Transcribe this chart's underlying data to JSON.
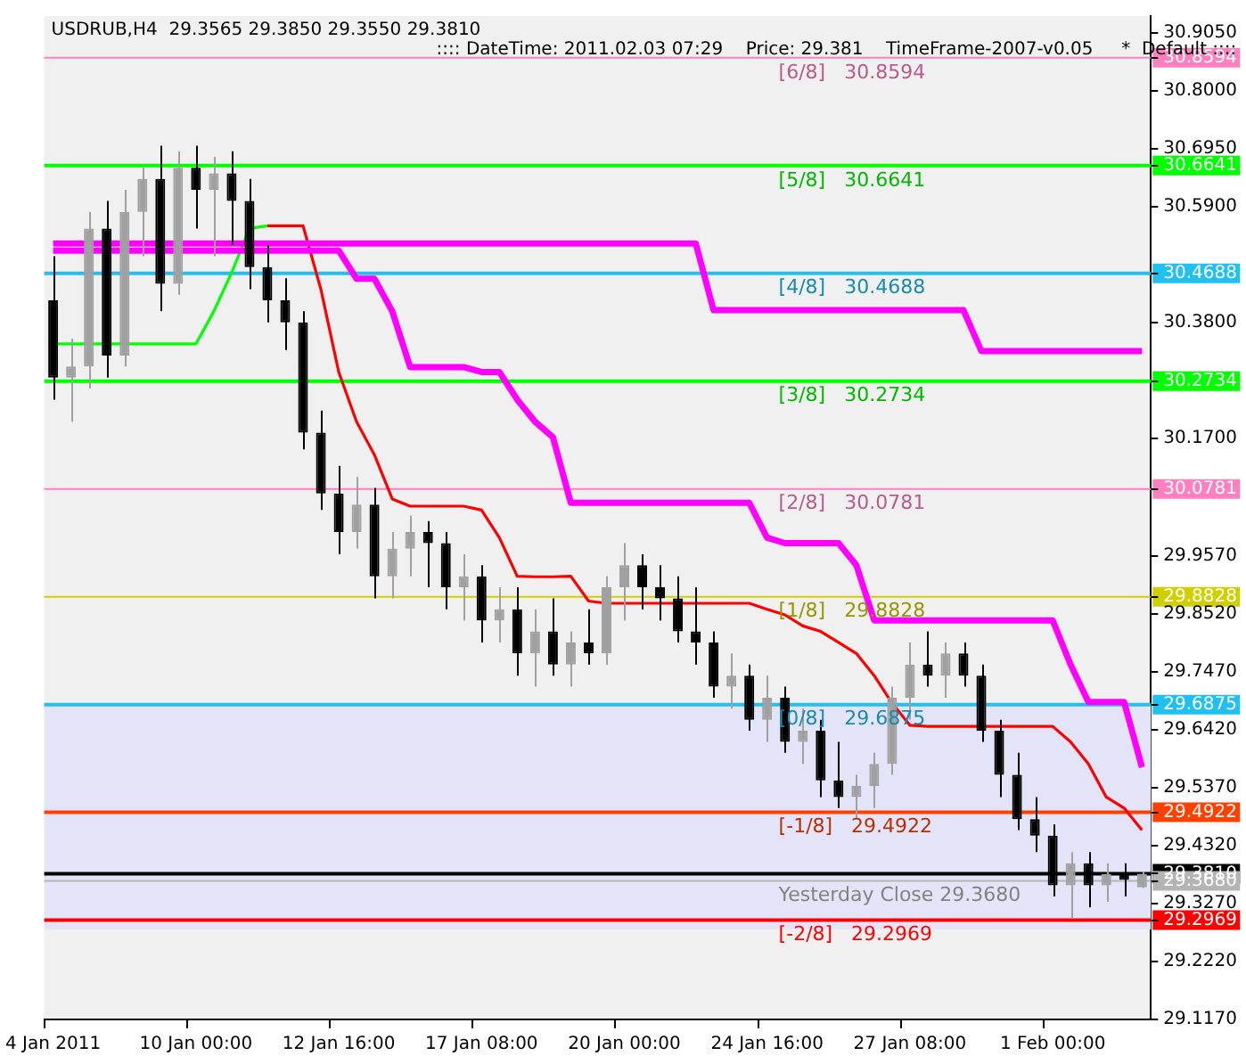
{
  "chart_data": {
    "type": "candlestick",
    "title": "USDRUB,H4  29.3565 29.3850 29.3550 29.3810",
    "subtitle": ":::: DateTime: 2011.02.03 07:29    Price: 29.381    TimeFrame-2007-v0.05     *  Default ::::",
    "categories": [
      "4 Jan 2011",
      null,
      null,
      null,
      null,
      null,
      null,
      null,
      "10 Jan 00:00",
      null,
      null,
      null,
      null,
      null,
      null,
      null,
      "12 Jan 16:00",
      null,
      null,
      null,
      null,
      null,
      null,
      null,
      "17 Jan 08:00",
      null,
      null,
      null,
      null,
      null,
      null,
      null,
      "20 Jan 00:00",
      null,
      null,
      null,
      null,
      null,
      null,
      null,
      "24 Jan 16:00",
      null,
      null,
      null,
      null,
      null,
      null,
      null,
      "27 Jan 08:00",
      null,
      null,
      null,
      null,
      null,
      null,
      null,
      "1 Feb 00:00",
      null,
      null,
      null,
      null,
      null
    ],
    "ylim": [
      29.117,
      30.935
    ],
    "yticks": [
      {
        "value": 30.905,
        "label": "30.9050"
      },
      {
        "value": 30.8594,
        "label": "30.8594"
      },
      {
        "value": 30.8,
        "label": "30.8000"
      },
      {
        "value": 30.695,
        "label": "30.6950"
      },
      {
        "value": 30.6641,
        "label": "30.6641"
      },
      {
        "value": 30.59,
        "label": "30.5900"
      },
      {
        "value": 30.4688,
        "label": "30.4688"
      },
      {
        "value": 30.38,
        "label": "30.3800"
      },
      {
        "value": 30.2734,
        "label": "30.2734"
      },
      {
        "value": 30.17,
        "label": "30.1700"
      },
      {
        "value": 30.0781,
        "label": "30.0781"
      },
      {
        "value": 29.957,
        "label": "29.9570"
      },
      {
        "value": 29.8828,
        "label": "29.8828"
      },
      {
        "value": 29.852,
        "label": "29.8520"
      },
      {
        "value": 29.747,
        "label": "29.7470"
      },
      {
        "value": 29.6875,
        "label": "29.6875"
      },
      {
        "value": 29.642,
        "label": "29.6420"
      },
      {
        "value": 29.537,
        "label": "29.5370"
      },
      {
        "value": 29.4922,
        "label": "29.4922"
      },
      {
        "value": 29.432,
        "label": "29.4320"
      },
      {
        "value": 29.381,
        "label": "29.3810"
      },
      {
        "value": 29.368,
        "label": "29.3680"
      },
      {
        "value": 29.327,
        "label": "29.3270"
      },
      {
        "value": 29.2969,
        "label": "29.2969"
      },
      {
        "value": 29.222,
        "label": "29.2220"
      },
      {
        "value": 29.117,
        "label": "29.1170"
      }
    ],
    "bands": [
      {
        "axis": "y",
        "from": 29.28,
        "to": 29.6875,
        "color": "#e4e4f8"
      }
    ],
    "ref_lines": [
      {
        "axis": "y",
        "value": 30.8594,
        "label": "[6/8]   30.8594",
        "color": "#ff80c0"
      },
      {
        "axis": "y",
        "value": 30.6641,
        "label": "[5/8]   30.6641",
        "color": "#00ff00"
      },
      {
        "axis": "y",
        "value": 30.4688,
        "label": "[4/8]   30.4688",
        "color": "#20c0f0"
      },
      {
        "axis": "y",
        "value": 30.2734,
        "label": "[3/8]   30.2734",
        "color": "#00ff00"
      },
      {
        "axis": "y",
        "value": 30.0781,
        "label": "[2/8]   30.0781",
        "color": "#ff80c0"
      },
      {
        "axis": "y",
        "value": 29.8828,
        "label": "[1/8]   29.8828",
        "color": "#d0d000"
      },
      {
        "axis": "y",
        "value": 29.6875,
        "label": "[0/8]   29.6875",
        "color": "#20c0f0"
      },
      {
        "axis": "y",
        "value": 29.4922,
        "label": "[-1/8]   29.4922",
        "color": "#ff4000"
      },
      {
        "axis": "y",
        "value": 29.381,
        "label": null,
        "color": "#000000"
      },
      {
        "axis": "y",
        "value": 29.368,
        "label": "Yesterday Close 29.3680",
        "color": "#b4b4b4"
      },
      {
        "axis": "y",
        "value": 29.2969,
        "label": "[-2/8]   29.2969",
        "color": "#ff0000"
      }
    ],
    "series": [
      {
        "ohlc": [
          [
            30.42,
            30.5,
            30.24,
            30.28
          ],
          [
            30.28,
            30.35,
            30.2,
            30.3
          ],
          [
            30.3,
            30.58,
            30.26,
            30.55
          ],
          [
            30.55,
            30.6,
            30.28,
            30.32
          ],
          [
            30.32,
            30.62,
            30.3,
            30.58
          ],
          [
            30.58,
            30.66,
            30.5,
            30.64
          ],
          [
            30.64,
            30.7,
            30.4,
            30.45
          ],
          [
            30.45,
            30.69,
            30.43,
            30.66
          ],
          [
            30.66,
            30.7,
            30.55,
            30.62
          ],
          [
            30.62,
            30.68,
            30.5,
            30.65
          ],
          [
            30.65,
            30.69,
            30.52,
            30.6
          ],
          [
            30.6,
            30.64,
            30.44,
            30.48
          ],
          [
            30.48,
            30.52,
            30.38,
            30.42
          ],
          [
            30.42,
            30.46,
            30.33,
            30.38
          ],
          [
            30.38,
            30.4,
            30.15,
            30.18
          ],
          [
            30.18,
            30.22,
            30.04,
            30.07
          ],
          [
            30.07,
            30.12,
            29.96,
            30
          ],
          [
            30,
            30.1,
            29.97,
            30.05
          ],
          [
            30.05,
            30.08,
            29.88,
            29.92
          ],
          [
            29.92,
            30,
            29.88,
            29.97
          ],
          [
            29.97,
            30.03,
            29.92,
            30
          ],
          [
            30,
            30.02,
            29.9,
            29.98
          ],
          [
            29.98,
            30,
            29.86,
            29.9
          ],
          [
            29.9,
            29.96,
            29.84,
            29.92
          ],
          [
            29.92,
            29.94,
            29.8,
            29.84
          ],
          [
            29.84,
            29.9,
            29.8,
            29.86
          ],
          [
            29.86,
            29.9,
            29.74,
            29.78
          ],
          [
            29.78,
            29.86,
            29.72,
            29.82
          ],
          [
            29.82,
            29.88,
            29.74,
            29.76
          ],
          [
            29.76,
            29.82,
            29.72,
            29.8
          ],
          [
            29.8,
            29.86,
            29.76,
            29.78
          ],
          [
            29.78,
            29.92,
            29.76,
            29.9
          ],
          [
            29.9,
            29.98,
            29.84,
            29.94
          ],
          [
            29.94,
            29.96,
            29.86,
            29.9
          ],
          [
            29.9,
            29.94,
            29.84,
            29.88
          ],
          [
            29.88,
            29.92,
            29.8,
            29.82
          ],
          [
            29.82,
            29.9,
            29.76,
            29.8
          ],
          [
            29.8,
            29.82,
            29.7,
            29.72
          ],
          [
            29.72,
            29.78,
            29.68,
            29.74
          ],
          [
            29.74,
            29.76,
            29.64,
            29.66
          ],
          [
            29.66,
            29.74,
            29.62,
            29.7
          ],
          [
            29.7,
            29.72,
            29.6,
            29.62
          ],
          [
            29.62,
            29.68,
            29.58,
            29.64
          ],
          [
            29.64,
            29.66,
            29.52,
            29.55
          ],
          [
            29.55,
            29.62,
            29.5,
            29.52
          ],
          [
            29.52,
            29.56,
            29.48,
            29.54
          ],
          [
            29.54,
            29.6,
            29.5,
            29.58
          ],
          [
            29.58,
            29.72,
            29.56,
            29.7
          ],
          [
            29.7,
            29.8,
            29.66,
            29.76
          ],
          [
            29.76,
            29.82,
            29.72,
            29.74
          ],
          [
            29.74,
            29.8,
            29.7,
            29.78
          ],
          [
            29.78,
            29.8,
            29.72,
            29.74
          ],
          [
            29.74,
            29.76,
            29.62,
            29.64
          ],
          [
            29.64,
            29.66,
            29.52,
            29.56
          ],
          [
            29.56,
            29.6,
            29.46,
            29.48
          ],
          [
            29.48,
            29.52,
            29.42,
            29.45
          ],
          [
            29.45,
            29.47,
            29.34,
            29.36
          ],
          [
            29.36,
            29.42,
            29.3,
            29.4
          ],
          [
            29.4,
            29.42,
            29.32,
            29.36
          ],
          [
            29.36,
            29.4,
            29.33,
            29.38
          ],
          [
            29.38,
            29.4,
            29.34,
            29.37
          ],
          [
            29.3565,
            29.385,
            29.355,
            29.381
          ]
        ],
        "colors": [
          "#000000",
          "#a0a0a0",
          "#a0a0a0",
          "#000000",
          "#a0a0a0",
          "#a0a0a0",
          "#000000",
          "#a0a0a0",
          "#000000",
          "#a0a0a0",
          "#000000",
          "#000000",
          "#000000",
          "#000000",
          "#000000",
          "#000000",
          "#000000",
          "#a0a0a0",
          "#000000",
          "#a0a0a0",
          "#a0a0a0",
          "#000000",
          "#000000",
          "#a0a0a0",
          "#000000",
          "#a0a0a0",
          "#000000",
          "#a0a0a0",
          "#000000",
          "#a0a0a0",
          "#000000",
          "#a0a0a0",
          "#a0a0a0",
          "#000000",
          "#000000",
          "#000000",
          "#000000",
          "#000000",
          "#a0a0a0",
          "#000000",
          "#a0a0a0",
          "#000000",
          "#a0a0a0",
          "#000000",
          "#000000",
          "#a0a0a0",
          "#a0a0a0",
          "#a0a0a0",
          "#a0a0a0",
          "#000000",
          "#a0a0a0",
          "#000000",
          "#000000",
          "#000000",
          "#000000",
          "#000000",
          "#000000",
          "#a0a0a0",
          "#000000",
          "#a0a0a0",
          "#000000",
          "#a0a0a0"
        ]
      },
      {
        "type": "line",
        "color": "#ff00ff",
        "values": [
          30.523,
          30.523,
          30.523,
          30.523,
          30.523,
          30.523,
          30.523,
          30.523,
          30.523,
          30.523,
          30.523,
          30.523,
          30.523,
          30.523,
          30.523,
          30.523,
          30.523,
          30.523,
          30.523,
          30.523,
          30.523,
          30.523,
          30.523,
          30.523,
          30.523,
          30.523,
          30.523,
          30.523,
          30.523,
          30.523,
          30.523,
          30.523,
          30.523,
          30.523,
          30.523,
          30.523,
          30.523,
          30.402,
          30.402,
          30.402,
          30.402,
          30.402,
          30.402,
          30.402,
          30.402,
          30.402,
          30.402,
          30.402,
          30.402,
          30.402,
          30.402,
          30.402,
          30.328,
          30.328,
          30.328,
          30.328,
          30.328,
          30.328,
          30.328,
          30.328,
          30.328,
          30.328
        ]
      },
      {
        "type": "line",
        "color": "#ff00ff",
        "values": [
          30.51,
          30.51,
          30.51,
          30.51,
          30.51,
          30.51,
          30.51,
          30.51,
          30.51,
          30.51,
          30.51,
          30.51,
          30.51,
          30.51,
          30.51,
          30.51,
          30.51,
          30.459,
          30.459,
          30.4,
          30.299,
          30.299,
          30.299,
          30.299,
          30.29,
          30.29,
          30.24,
          30.2,
          30.172,
          30.053,
          30.053,
          30.053,
          30.053,
          30.053,
          30.053,
          30.053,
          30.053,
          30.053,
          30.053,
          30.053,
          29.99,
          29.98,
          29.98,
          29.98,
          29.98,
          29.94,
          29.84,
          29.84,
          29.84,
          29.84,
          29.84,
          29.84,
          29.84,
          29.84,
          29.84,
          29.84,
          29.84,
          29.76,
          29.692,
          29.692,
          29.692,
          29.574
        ]
      },
      {
        "type": "line",
        "color": "#ff0000",
        "values": [
          null,
          null,
          null,
          null,
          null,
          null,
          null,
          null,
          null,
          null,
          null,
          null,
          30.555,
          30.555,
          30.555,
          30.44,
          30.29,
          30.2,
          30.14,
          30.06,
          30.047,
          30.047,
          30.047,
          30.047,
          30.04,
          29.99,
          29.92,
          29.919,
          29.919,
          29.92,
          29.875,
          29.871,
          29.871,
          29.871,
          29.871,
          29.871,
          29.871,
          29.871,
          29.871,
          29.871,
          29.86,
          29.85,
          29.83,
          29.82,
          29.8,
          29.78,
          29.74,
          29.69,
          29.65,
          29.648,
          29.648,
          29.648,
          29.648,
          29.648,
          29.648,
          29.648,
          29.648,
          29.62,
          29.58,
          29.52,
          29.5,
          29.46
        ]
      },
      {
        "type": "line",
        "color": "#00ff00",
        "values": [
          30.341,
          30.341,
          30.341,
          30.341,
          30.341,
          30.341,
          30.341,
          30.341,
          30.341,
          30.4,
          30.47,
          30.55,
          30.555,
          null,
          null,
          null,
          null,
          null,
          null,
          null,
          null,
          null,
          null,
          null,
          null,
          null,
          null,
          null,
          null,
          null,
          null,
          null,
          null,
          null,
          null,
          null,
          null,
          null,
          null,
          null,
          null,
          null,
          null,
          null,
          null,
          null,
          null,
          null,
          null,
          null,
          null,
          null,
          null,
          null,
          null,
          null,
          null,
          null,
          null,
          null,
          null,
          null
        ]
      }
    ]
  }
}
